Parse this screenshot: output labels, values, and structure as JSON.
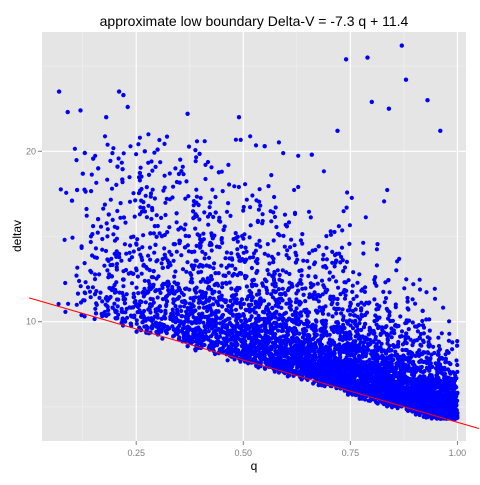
{
  "chart_data": {
    "type": "scatter",
    "title": "approximate low boundary Delta-V = -7.3 q +  11.4",
    "xlabel": "q",
    "ylabel": "deltav",
    "xlim": [
      0.03,
      1.02
    ],
    "ylim": [
      3.0,
      27.0
    ],
    "x_ticks": [
      0.25,
      0.5,
      0.75,
      1.0
    ],
    "x_tick_labels": [
      "0.25",
      "0.50",
      "0.75",
      "1.00"
    ],
    "y_ticks": [
      10,
      20
    ],
    "y_tick_labels": [
      "10",
      "20"
    ],
    "grid": true,
    "legend": "none",
    "colors": {
      "panel_background": "#e5e5e5",
      "grid_major": "#ffffff",
      "grid_minor": "#f2f2f2",
      "points": "#0000ff",
      "boundary_line": "#ff0000"
    },
    "boundary_line": {
      "slope": -7.3,
      "intercept": 11.4
    },
    "notable_points": [
      {
        "x": 0.07,
        "y": 23.5
      },
      {
        "x": 0.09,
        "y": 22.3
      },
      {
        "x": 0.12,
        "y": 22.4
      },
      {
        "x": 0.13,
        "y": 19.9
      },
      {
        "x": 0.18,
        "y": 22.0
      },
      {
        "x": 0.21,
        "y": 23.5
      },
      {
        "x": 0.22,
        "y": 23.3
      },
      {
        "x": 0.23,
        "y": 22.6
      },
      {
        "x": 0.3,
        "y": 20.1
      },
      {
        "x": 0.37,
        "y": 22.2
      },
      {
        "x": 0.49,
        "y": 22.0
      },
      {
        "x": 0.74,
        "y": 25.4
      },
      {
        "x": 0.79,
        "y": 25.5
      },
      {
        "x": 0.8,
        "y": 22.9
      },
      {
        "x": 0.84,
        "y": 22.5
      },
      {
        "x": 0.87,
        "y": 26.2
      },
      {
        "x": 0.88,
        "y": 24.2
      },
      {
        "x": 0.93,
        "y": 23.0
      },
      {
        "x": 0.72,
        "y": 21.2
      },
      {
        "x": 0.96,
        "y": 21.2
      },
      {
        "x": 0.55,
        "y": 20.3
      },
      {
        "x": 0.66,
        "y": 19.8
      },
      {
        "x": 0.27,
        "y": 20.0
      },
      {
        "x": 0.1,
        "y": 17.1
      }
    ],
    "point_cloud": {
      "count": 6000,
      "q_range": [
        0.06,
        1.0
      ],
      "lower_boundary_slope": -7.3,
      "lower_boundary_intercept": 11.4,
      "density_increases_with_q": true
    }
  }
}
